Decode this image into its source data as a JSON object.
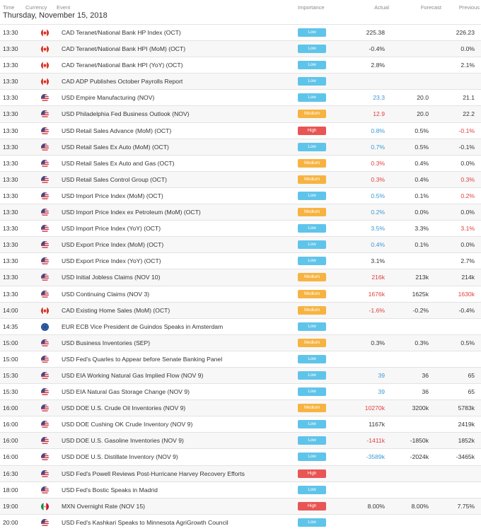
{
  "header": {
    "time": "Time",
    "currency": "Currency",
    "event": "Event",
    "importance": "Importance",
    "actual": "Actual",
    "forecast": "Forecast",
    "previous": "Previous",
    "date": "Thursday, November 15, 2018"
  },
  "colors": {
    "low": "#5fc4ea",
    "medium": "#f7b341",
    "high": "#e95454",
    "better": "#3a98d6",
    "worse": "#e23d3d"
  },
  "rows": [
    {
      "time": "13:30",
      "flag": "ca-flag-icon",
      "event": "CAD Teranet/National Bank HP Index (OCT)",
      "importance": "Low",
      "actual": "225.38",
      "actual_color": "neutral",
      "forecast": "",
      "previous": "226.23",
      "previous_color": "neutral"
    },
    {
      "time": "13:30",
      "flag": "ca-flag-icon",
      "event": "CAD Teranet/National Bank HPI (MoM) (OCT)",
      "importance": "Low",
      "actual": "-0.4%",
      "actual_color": "neutral",
      "forecast": "",
      "previous": "0.0%",
      "previous_color": "neutral"
    },
    {
      "time": "13:30",
      "flag": "ca-flag-icon",
      "event": "CAD Teranet/National Bank HPI (YoY) (OCT)",
      "importance": "Low",
      "actual": "2.8%",
      "actual_color": "neutral",
      "forecast": "",
      "previous": "2.1%",
      "previous_color": "neutral"
    },
    {
      "time": "13:30",
      "flag": "ca-flag-icon",
      "event": "CAD ADP Publishes October Payrolls Report",
      "importance": "Low",
      "actual": "",
      "actual_color": "neutral",
      "forecast": "",
      "previous": "",
      "previous_color": "neutral"
    },
    {
      "time": "13:30",
      "flag": "us-flag-icon",
      "event": "USD Empire Manufacturing (NOV)",
      "importance": "Low",
      "actual": "23.3",
      "actual_color": "blue",
      "forecast": "20.0",
      "previous": "21.1",
      "previous_color": "neutral"
    },
    {
      "time": "13:30",
      "flag": "us-flag-icon",
      "event": "USD Philadelphia Fed Business Outlook (NOV)",
      "importance": "Medium",
      "actual": "12.9",
      "actual_color": "red",
      "forecast": "20.0",
      "previous": "22.2",
      "previous_color": "neutral"
    },
    {
      "time": "13:30",
      "flag": "us-flag-icon",
      "event": "USD Retail Sales Advance (MoM) (OCT)",
      "importance": "High",
      "actual": "0.8%",
      "actual_color": "blue",
      "forecast": "0.5%",
      "previous": "-0.1%",
      "previous_color": "red"
    },
    {
      "time": "13:30",
      "flag": "us-flag-icon",
      "event": "USD Retail Sales Ex Auto (MoM) (OCT)",
      "importance": "Low",
      "actual": "0.7%",
      "actual_color": "blue",
      "forecast": "0.5%",
      "previous": "-0.1%",
      "previous_color": "neutral"
    },
    {
      "time": "13:30",
      "flag": "us-flag-icon",
      "event": "USD Retail Sales Ex Auto and Gas (OCT)",
      "importance": "Medium",
      "actual": "0.3%",
      "actual_color": "red",
      "forecast": "0.4%",
      "previous": "0.0%",
      "previous_color": "neutral"
    },
    {
      "time": "13:30",
      "flag": "us-flag-icon",
      "event": "USD Retail Sales Control Group (OCT)",
      "importance": "Medium",
      "actual": "0.3%",
      "actual_color": "red",
      "forecast": "0.4%",
      "previous": "0.3%",
      "previous_color": "red"
    },
    {
      "time": "13:30",
      "flag": "us-flag-icon",
      "event": "USD Import Price Index (MoM) (OCT)",
      "importance": "Low",
      "actual": "0.5%",
      "actual_color": "blue",
      "forecast": "0.1%",
      "previous": "0.2%",
      "previous_color": "red"
    },
    {
      "time": "13:30",
      "flag": "us-flag-icon",
      "event": "USD Import Price Index ex Petroleum (MoM) (OCT)",
      "importance": "Medium",
      "actual": "0.2%",
      "actual_color": "blue",
      "forecast": "0.0%",
      "previous": "0.0%",
      "previous_color": "neutral"
    },
    {
      "time": "13:30",
      "flag": "us-flag-icon",
      "event": "USD Import Price Index (YoY) (OCT)",
      "importance": "Low",
      "actual": "3.5%",
      "actual_color": "blue",
      "forecast": "3.3%",
      "previous": "3.1%",
      "previous_color": "red"
    },
    {
      "time": "13:30",
      "flag": "us-flag-icon",
      "event": "USD Export Price Index (MoM) (OCT)",
      "importance": "Low",
      "actual": "0.4%",
      "actual_color": "blue",
      "forecast": "0.1%",
      "previous": "0.0%",
      "previous_color": "neutral"
    },
    {
      "time": "13:30",
      "flag": "us-flag-icon",
      "event": "USD Export Price Index (YoY) (OCT)",
      "importance": "Low",
      "actual": "3.1%",
      "actual_color": "neutral",
      "forecast": "",
      "previous": "2.7%",
      "previous_color": "neutral"
    },
    {
      "time": "13:30",
      "flag": "us-flag-icon",
      "event": "USD Initial Jobless Claims (NOV 10)",
      "importance": "Medium",
      "actual": "216k",
      "actual_color": "red",
      "forecast": "213k",
      "previous": "214k",
      "previous_color": "neutral"
    },
    {
      "time": "13:30",
      "flag": "us-flag-icon",
      "event": "USD Continuing Claims (NOV 3)",
      "importance": "Medium",
      "actual": "1676k",
      "actual_color": "red",
      "forecast": "1625k",
      "previous": "1630k",
      "previous_color": "red"
    },
    {
      "time": "14:00",
      "flag": "ca-flag-icon",
      "event": "CAD Existing Home Sales (MoM) (OCT)",
      "importance": "Medium",
      "actual": "-1.6%",
      "actual_color": "red",
      "forecast": "-0.2%",
      "previous": "-0.4%",
      "previous_color": "neutral"
    },
    {
      "time": "14:35",
      "flag": "eu-flag-icon",
      "event": "EUR ECB Vice President de Guindos Speaks in Amsterdam",
      "importance": "Low",
      "actual": "",
      "actual_color": "neutral",
      "forecast": "",
      "previous": "",
      "previous_color": "neutral"
    },
    {
      "time": "15:00",
      "flag": "us-flag-icon",
      "event": "USD Business Inventories (SEP)",
      "importance": "Medium",
      "actual": "0.3%",
      "actual_color": "neutral",
      "forecast": "0.3%",
      "previous": "0.5%",
      "previous_color": "neutral"
    },
    {
      "time": "15:00",
      "flag": "us-flag-icon",
      "event": "USD Fed's Quarles to Appear before Senate Banking Panel",
      "importance": "Low",
      "actual": "",
      "actual_color": "neutral",
      "forecast": "",
      "previous": "",
      "previous_color": "neutral"
    },
    {
      "time": "15:30",
      "flag": "us-flag-icon",
      "event": "USD EIA Working Natural Gas Implied Flow (NOV 9)",
      "importance": "Low",
      "actual": "39",
      "actual_color": "blue",
      "forecast": "36",
      "previous": "65",
      "previous_color": "neutral"
    },
    {
      "time": "15:30",
      "flag": "us-flag-icon",
      "event": "USD EIA Natural Gas Storage Change (NOV 9)",
      "importance": "Low",
      "actual": "39",
      "actual_color": "blue",
      "forecast": "36",
      "previous": "65",
      "previous_color": "neutral"
    },
    {
      "time": "16:00",
      "flag": "us-flag-icon",
      "event": "USD DOE U.S. Crude Oil Inventories (NOV 9)",
      "importance": "Medium",
      "actual": "10270k",
      "actual_color": "red",
      "forecast": "3200k",
      "previous": "5783k",
      "previous_color": "neutral"
    },
    {
      "time": "16:00",
      "flag": "us-flag-icon",
      "event": "USD DOE Cushing OK Crude Inventory (NOV 9)",
      "importance": "Low",
      "actual": "1167k",
      "actual_color": "neutral",
      "forecast": "",
      "previous": "2419k",
      "previous_color": "neutral"
    },
    {
      "time": "16:00",
      "flag": "us-flag-icon",
      "event": "USD DOE U.S. Gasoline Inventories (NOV 9)",
      "importance": "Low",
      "actual": "-1411k",
      "actual_color": "red",
      "forecast": "-1850k",
      "previous": "1852k",
      "previous_color": "neutral"
    },
    {
      "time": "16:00",
      "flag": "us-flag-icon",
      "event": "USD DOE U.S. Distillate Inventory (NOV 9)",
      "importance": "Low",
      "actual": "-3589k",
      "actual_color": "blue",
      "forecast": "-2024k",
      "previous": "-3465k",
      "previous_color": "neutral"
    },
    {
      "time": "16:30",
      "flag": "us-flag-icon",
      "event": "USD Fed's Powell Reviews Post-Hurricane Harvey Recovery Efforts",
      "importance": "High",
      "actual": "",
      "actual_color": "neutral",
      "forecast": "",
      "previous": "",
      "previous_color": "neutral"
    },
    {
      "time": "18:00",
      "flag": "us-flag-icon",
      "event": "USD Fed's Bostic Speaks in Madrid",
      "importance": "Low",
      "actual": "",
      "actual_color": "neutral",
      "forecast": "",
      "previous": "",
      "previous_color": "neutral"
    },
    {
      "time": "19:00",
      "flag": "mx-flag-icon",
      "event": "MXN Overnight Rate (NOV 15)",
      "importance": "High",
      "actual": "8.00%",
      "actual_color": "neutral",
      "forecast": "8.00%",
      "previous": "7.75%",
      "previous_color": "neutral"
    },
    {
      "time": "20:00",
      "flag": "us-flag-icon",
      "event": "USD Fed's Kashkari Speaks to Minnesota AgriGrowth Council",
      "importance": "Low",
      "actual": "",
      "actual_color": "neutral",
      "forecast": "",
      "previous": "",
      "previous_color": "neutral"
    }
  ]
}
